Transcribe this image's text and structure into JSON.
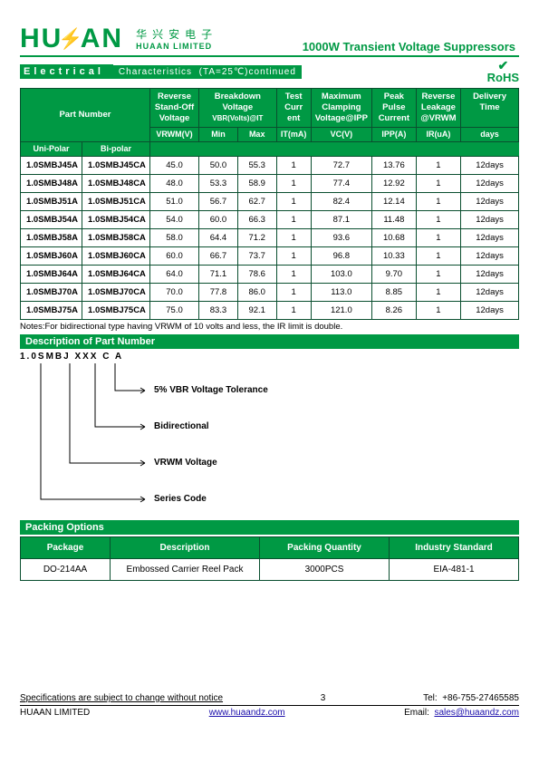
{
  "brand": {
    "name_parts": [
      "HU",
      "A",
      "AN"
    ],
    "cn": "华兴安电子",
    "en": "HUAAN LIMITED",
    "logo_color": "#009944",
    "bolt_color": "#d30000"
  },
  "doc_title": "1000W Transient Voltage Suppressors",
  "section": {
    "title": "Electrical",
    "subtitle": "Characteristics",
    "cond": "(TA=25℃)continued"
  },
  "rohs_label": "RoHS",
  "table": {
    "headers": {
      "part_number": "Part   Number",
      "unipolar": "Uni-Polar",
      "bipolar": "Bi-polar",
      "reverse_standoff": "Reverse Stand-Off Voltage",
      "vrwm_v": "VRWM(V)",
      "breakdown": "Breakdown Voltage",
      "vbr_at_it": "VBR(Volts)@IT",
      "min": "Min",
      "max": "Max",
      "test_current": "Test Curr ent",
      "it_ma": "IT(mA)",
      "max_clamp": "Maximum Clamping Voltage@IPP",
      "vc_v": "VC(V)",
      "peak_pulse": "Peak Pulse Current",
      "ipp_a": "IPP(A)",
      "reverse_leakage": "Reverse Leakage @VRWM",
      "ir_ua": "IR(uA)",
      "delivery": "Delivery Time",
      "days": "days"
    },
    "rows": [
      {
        "uni": "1.0SMBJ45A",
        "bi": "1.0SMBJ45CA",
        "vrwm": "45.0",
        "min": "50.0",
        "max": "55.3",
        "it": "1",
        "vc": "72.7",
        "ipp": "13.76",
        "ir": "1",
        "deliv": "12days"
      },
      {
        "uni": "1.0SMBJ48A",
        "bi": "1.0SMBJ48CA",
        "vrwm": "48.0",
        "min": "53.3",
        "max": "58.9",
        "it": "1",
        "vc": "77.4",
        "ipp": "12.92",
        "ir": "1",
        "deliv": "12days"
      },
      {
        "uni": "1.0SMBJ51A",
        "bi": "1.0SMBJ51CA",
        "vrwm": "51.0",
        "min": "56.7",
        "max": "62.7",
        "it": "1",
        "vc": "82.4",
        "ipp": "12.14",
        "ir": "1",
        "deliv": "12days"
      },
      {
        "uni": "1.0SMBJ54A",
        "bi": "1.0SMBJ54CA",
        "vrwm": "54.0",
        "min": "60.0",
        "max": "66.3",
        "it": "1",
        "vc": "87.1",
        "ipp": "11.48",
        "ir": "1",
        "deliv": "12days"
      },
      {
        "uni": "1.0SMBJ58A",
        "bi": "1.0SMBJ58CA",
        "vrwm": "58.0",
        "min": "64.4",
        "max": "71.2",
        "it": "1",
        "vc": "93.6",
        "ipp": "10.68",
        "ir": "1",
        "deliv": "12days"
      },
      {
        "uni": "1.0SMBJ60A",
        "bi": "1.0SMBJ60CA",
        "vrwm": "60.0",
        "min": "66.7",
        "max": "73.7",
        "it": "1",
        "vc": "96.8",
        "ipp": "10.33",
        "ir": "1",
        "deliv": "12days"
      },
      {
        "uni": "1.0SMBJ64A",
        "bi": "1.0SMBJ64CA",
        "vrwm": "64.0",
        "min": "71.1",
        "max": "78.6",
        "it": "1",
        "vc": "103.0",
        "ipp": "9.70",
        "ir": "1",
        "deliv": "12days"
      },
      {
        "uni": "1.0SMBJ70A",
        "bi": "1.0SMBJ70CA",
        "vrwm": "70.0",
        "min": "77.8",
        "max": "86.0",
        "it": "1",
        "vc": "113.0",
        "ipp": "8.85",
        "ir": "1",
        "deliv": "12days"
      },
      {
        "uni": "1.0SMBJ75A",
        "bi": "1.0SMBJ75CA",
        "vrwm": "75.0",
        "min": "83.3",
        "max": "92.1",
        "it": "1",
        "vc": "121.0",
        "ipp": "8.26",
        "ir": "1",
        "deliv": "12days"
      }
    ],
    "col_widths_pct": [
      12,
      13,
      10,
      8,
      8,
      7,
      12,
      9,
      9,
      12
    ]
  },
  "notes": "Notes:For bidirectional type having VRWM of 10 volts and less, the IR limit is double.",
  "desc_section_title": "Description of Part Number",
  "pn_example": "1.0SMBJ  XXX   C   A",
  "pn_labels": {
    "tolerance": "5% VBR Voltage Tolerance",
    "bidirectional": "Bidirectional",
    "vrwm": "VRWM Voltage",
    "series": "Series Code"
  },
  "packing": {
    "title": "Packing Options",
    "headers": {
      "package": "Package",
      "description": "Description",
      "quantity": "Packing   Quantity",
      "standard": "Industry Standard"
    },
    "row": {
      "package": "DO-214AA",
      "description": "Embossed Carrier Reel Pack",
      "quantity": "3000PCS",
      "standard": "EIA-481-1"
    }
  },
  "footer": {
    "disclaimer_text": "Specifications are subject to change without notice",
    "page_num": "3",
    "tel_label": "Tel:",
    "tel": "+86-755-27465585",
    "company": "HUAAN LIMITED",
    "website": "www.huaandz.com",
    "email_label": "Email:",
    "email": "sales@huaandz.com"
  },
  "colors": {
    "brand_green": "#009944",
    "border_dark": "#0a4f2f",
    "link_blue": "#1a0dab"
  }
}
